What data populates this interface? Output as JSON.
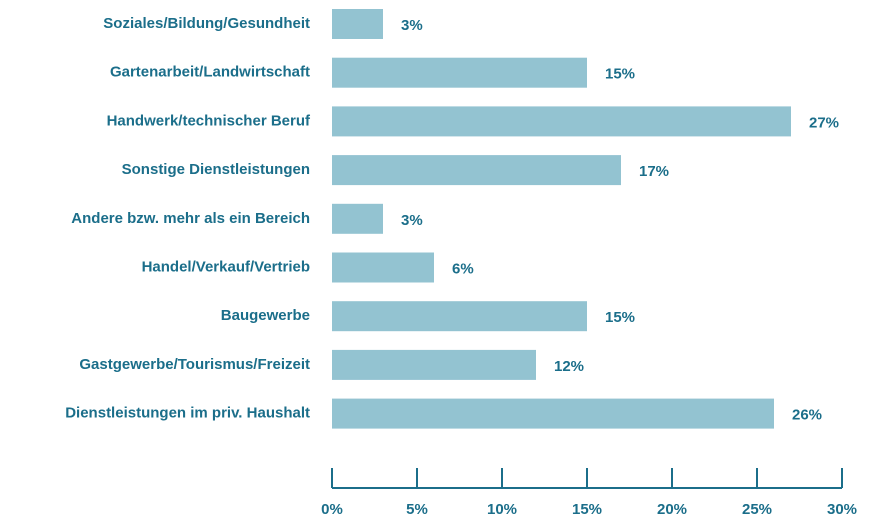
{
  "chart_data": {
    "type": "bar",
    "orientation": "horizontal",
    "categories": [
      "Soziales/Bildung/Gesundheit",
      "Gartenarbeit/Landwirtschaft",
      "Handwerk/technischer Beruf",
      "Sonstige Dienstleistungen",
      "Andere bzw. mehr als ein Bereich",
      "Handel/Verkauf/Vertrieb",
      "Baugewerbe",
      "Gastgewerbe/Tourismus/Freizeit",
      "Dienstleistungen im priv. Haushalt"
    ],
    "values": [
      3,
      15,
      27,
      17,
      3,
      6,
      15,
      12,
      26
    ],
    "value_labels": [
      "3%",
      "15%",
      "27%",
      "17%",
      "3%",
      "6%",
      "15%",
      "12%",
      "26%"
    ],
    "color": "#93c3d1",
    "xlim": [
      0,
      30
    ],
    "xticks": [
      {
        "value": 0,
        "label": "0%"
      },
      {
        "value": 5,
        "label": "5%"
      },
      {
        "value": 10,
        "label": "10%"
      },
      {
        "value": 15,
        "label": "15%"
      },
      {
        "value": 20,
        "label": "20%"
      },
      {
        "value": 25,
        "label": "25%"
      },
      {
        "value": 30,
        "label": "30%"
      }
    ],
    "grid": false
  }
}
